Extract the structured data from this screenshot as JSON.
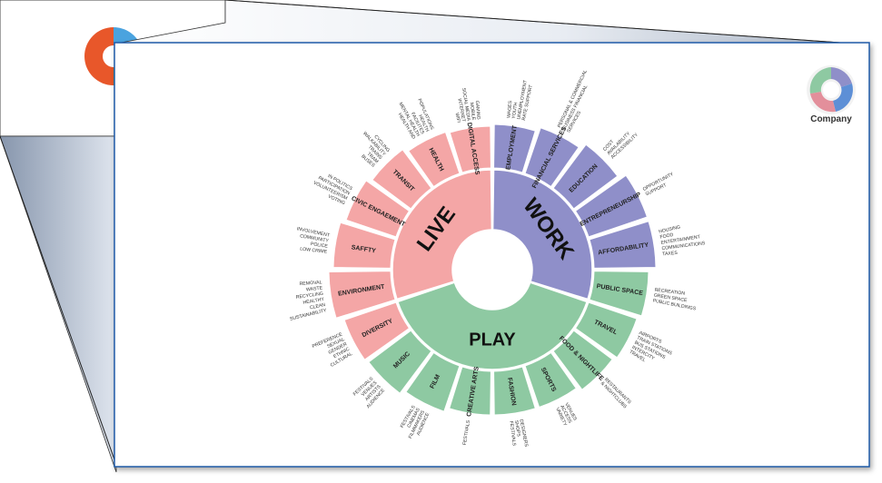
{
  "brand": {
    "company": "Company"
  },
  "colors": {
    "live": "#f4a6a6",
    "work": "#8f8fc9",
    "play": "#8ec9a2",
    "frame": "#1e5aa8"
  },
  "diagram": {
    "hubs": [
      {
        "name": "LIVE",
        "color": "#f4a6a6"
      },
      {
        "name": "WORK",
        "color": "#8f8fc9"
      },
      {
        "name": "PLAY",
        "color": "#8ec9a2"
      }
    ],
    "segments": [
      {
        "label": "DIGITAL ACCESS",
        "group": "live",
        "notes": [
          "WIFI",
          "INTERNET",
          "SOCIAL MEDIA",
          "MOBILE",
          "GAMING"
        ]
      },
      {
        "label": "EMPLOYMENT",
        "group": "work",
        "notes": [
          "WAGES",
          "YOUTH",
          "UNEMPLOYMENT",
          "RATE SUPPORT"
        ]
      },
      {
        "label": "FINANCIAL SERVICES",
        "group": "work",
        "notes": [
          "PERSONAL & COMMERCIAL",
          "BUSINESS FINANCIAL",
          "SERVICES"
        ]
      },
      {
        "label": "EDUCATION",
        "group": "work",
        "notes": [
          "COST",
          "AVAILABILITY",
          "ACCESSIBILITY"
        ]
      },
      {
        "label": "ENTREPRENEURSHIP",
        "group": "work",
        "notes": [
          "OPPORTUNITY",
          "SUPPORT"
        ]
      },
      {
        "label": "AFFORDABILITY",
        "group": "work",
        "notes": [
          "HOUSING",
          "FOOD",
          "ENTERTAINMENT",
          "COMMUNICATIONS",
          "TAXES"
        ]
      },
      {
        "label": "PUBLIC SPACE",
        "group": "play",
        "notes": [
          "RECREATION",
          "GREEN SPACE",
          "PUBLIC BUILDINGS"
        ]
      },
      {
        "label": "TRAVEL",
        "group": "play",
        "notes": [
          "AIRPORTS",
          "TRAIN STATIONS",
          "BUS STATIONS",
          "INTERCITY",
          "TRAVEL"
        ]
      },
      {
        "label": "FOOD & NIGHTLIFE",
        "group": "play",
        "notes": [
          "RESTAURANTS",
          "& NIGHTCLUBS"
        ]
      },
      {
        "label": "SPORTS",
        "group": "play",
        "notes": [
          "VENUES",
          "ACCESS",
          "VARIETY"
        ]
      },
      {
        "label": "FASHION",
        "group": "play",
        "notes": [
          "DESIGNERS",
          "SHOPS",
          "FESTIVALS"
        ]
      },
      {
        "label": "CREATIVE ARTS",
        "group": "play",
        "notes": [
          "FESTIVALS"
        ]
      },
      {
        "label": "FILM",
        "group": "play",
        "notes": [
          "AUDIENCE",
          "FILMMAKERS",
          "CINEMAS",
          "FESTIVALS"
        ]
      },
      {
        "label": "MUSIC",
        "group": "play",
        "notes": [
          "AUDIENCE",
          "ARTISTS",
          "VENUES",
          "FESTIVALS"
        ]
      },
      {
        "label": "DIVERSITY",
        "group": "live",
        "notes": [
          "CULTURAL",
          "ETHNIC",
          "GENDER",
          "SEXUAL",
          "PREFERENCE"
        ]
      },
      {
        "label": "ENVIRONMENT",
        "group": "live",
        "notes": [
          "SUSTAINABILITY",
          "CLEAN",
          "HEALTHY",
          "RECYCLING",
          "WASTE",
          "REMOVAL"
        ]
      },
      {
        "label": "SAFFTY",
        "group": "live",
        "notes": [
          "LOW CRIME",
          "POLICE",
          "COMMUNITY",
          "INVOLVEMENT"
        ]
      },
      {
        "label": "CIVIC ENGAEMENT",
        "group": "live",
        "notes": [
          "VOTING",
          "VOLUNTEERISM",
          "PARTICIPATION",
          "IN POLITICS"
        ]
      },
      {
        "label": "TRANSIT",
        "group": "live",
        "notes": [
          "BUSES",
          "TRAM",
          "TRAINS",
          "WALKABILITY",
          "CYCLING"
        ]
      },
      {
        "label": "HEALTH",
        "group": "live",
        "notes": [
          "HEALTH AND",
          "MENTAL HEALTH",
          "FACILITES",
          "HEALTH",
          "POPULATIONS"
        ]
      }
    ]
  }
}
